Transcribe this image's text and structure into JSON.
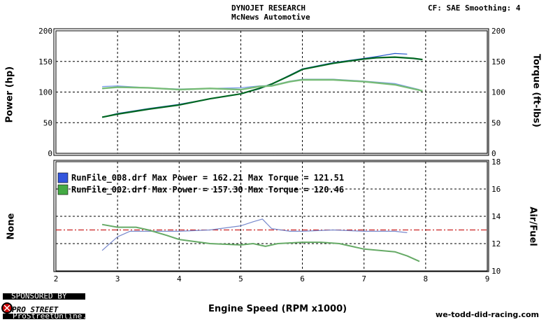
{
  "header": {
    "title": "DYNOJET RESEARCH",
    "shop": "McNews Automotive",
    "correction": "CF: SAE  Smoothing: 4"
  },
  "axes_labels": {
    "power": "Power (hp)",
    "torque": "Torque (ft-lbs)",
    "none": "None",
    "af": "Air/Fuel",
    "x": "Engine Speed (RPM x1000)"
  },
  "legend": [
    {
      "text": "RunFile_008.drf Max Power = 162.21    Max Torque = 121.51",
      "color": "#3355dd"
    },
    {
      "text": "RunFile_002.drf Max Power = 157.30    Max Torque = 120.46",
      "color": "#44aa44"
    }
  ],
  "footer": {
    "sponsor_top": "SPONSORED BY",
    "logo": "PRO STREET",
    "logo_url": "ProStreetOnline.com",
    "site": "we-todd-did-racing.com"
  },
  "colors": {
    "run008_power": "#2255cc",
    "run008_torque": "#7799ee",
    "run002_power": "#006622",
    "run002_torque": "#77bb77",
    "af_run008": "#7788cc",
    "af_run002": "#66aa66",
    "af_target": "#cc2222"
  },
  "chart_data": [
    {
      "type": "line",
      "title": "DYNOJET RESEARCH",
      "xlabel": "Engine Speed (RPM x1000)",
      "ylabel": "Power (hp)",
      "ylabel_right": "Torque (ft-lbs)",
      "xlim": [
        2,
        9
      ],
      "ylim": [
        0,
        200
      ],
      "y_ticks": [
        0,
        50,
        100,
        150,
        200
      ],
      "x_ticks": [
        2,
        3,
        4,
        5,
        6,
        7,
        8,
        9
      ],
      "grid": true,
      "series": [
        {
          "name": "RunFile_008.drf",
          "measure": "power",
          "color_key": "run008_power",
          "x": [
            2.75,
            3.0,
            3.5,
            4.0,
            4.5,
            5.0,
            5.3,
            5.5,
            5.8,
            6.0,
            6.5,
            7.0,
            7.2,
            7.5,
            7.7
          ],
          "y": [
            59,
            65,
            73,
            80,
            89,
            97,
            105,
            113,
            128,
            138,
            148,
            155,
            158,
            163,
            162
          ]
        },
        {
          "name": "RunFile_002.drf",
          "measure": "power",
          "color_key": "run002_power",
          "x": [
            2.75,
            3.0,
            3.5,
            4.0,
            4.5,
            5.0,
            5.3,
            5.5,
            5.8,
            6.0,
            6.5,
            7.0,
            7.2,
            7.5,
            7.8,
            7.95
          ],
          "y": [
            59,
            64,
            72,
            79,
            89,
            97,
            106,
            113,
            127,
            137,
            147,
            154,
            156,
            157,
            155,
            153
          ]
        },
        {
          "name": "RunFile_008.drf",
          "measure": "torque",
          "color_key": "run008_torque",
          "x": [
            2.75,
            3.0,
            3.5,
            4.0,
            4.5,
            5.0,
            5.3,
            5.5,
            5.8,
            6.0,
            6.5,
            7.0,
            7.5,
            7.9
          ],
          "y": [
            109,
            110,
            107,
            105,
            106,
            107,
            110,
            111,
            118,
            121,
            121,
            118,
            114,
            104
          ]
        },
        {
          "name": "RunFile_002.drf",
          "measure": "torque",
          "color_key": "run002_torque",
          "x": [
            2.75,
            3.0,
            3.5,
            4.0,
            4.5,
            5.0,
            5.3,
            5.5,
            5.8,
            6.0,
            6.5,
            7.0,
            7.5,
            7.95
          ],
          "y": [
            106,
            108,
            107,
            104,
            106,
            104,
            109,
            110,
            117,
            120,
            120,
            117,
            112,
            102
          ]
        }
      ]
    },
    {
      "type": "line",
      "xlabel": "Engine Speed (RPM x1000)",
      "ylabel": "None",
      "ylabel_right": "Air/Fuel",
      "xlim": [
        2,
        9
      ],
      "ylim": [
        10,
        18
      ],
      "y_ticks": [
        10,
        12,
        14,
        16,
        18
      ],
      "x_ticks": [
        2,
        3,
        4,
        5,
        6,
        7,
        8,
        9
      ],
      "grid": true,
      "reference_line": 13.0,
      "series": [
        {
          "name": "RunFile_008.drf",
          "color_key": "af_run008",
          "x": [
            2.75,
            3.0,
            3.2,
            3.5,
            4.0,
            4.5,
            5.0,
            5.2,
            5.35,
            5.5,
            5.8,
            6.0,
            6.5,
            7.0,
            7.5,
            7.7
          ],
          "y": [
            11.5,
            12.5,
            12.9,
            12.9,
            12.9,
            13.0,
            13.3,
            13.6,
            13.8,
            13.1,
            12.9,
            12.9,
            13.0,
            12.9,
            12.9,
            12.8
          ]
        },
        {
          "name": "RunFile_002.drf",
          "color_key": "af_run002",
          "x": [
            2.75,
            3.0,
            3.3,
            3.5,
            3.8,
            4.0,
            4.5,
            5.0,
            5.2,
            5.4,
            5.6,
            6.0,
            6.3,
            6.6,
            7.0,
            7.5,
            7.7,
            7.9
          ],
          "y": [
            13.4,
            13.2,
            13.2,
            13.0,
            12.6,
            12.3,
            12.0,
            11.9,
            12.0,
            11.8,
            12.0,
            12.1,
            12.1,
            12.0,
            11.6,
            11.4,
            11.1,
            10.7
          ]
        }
      ]
    }
  ]
}
